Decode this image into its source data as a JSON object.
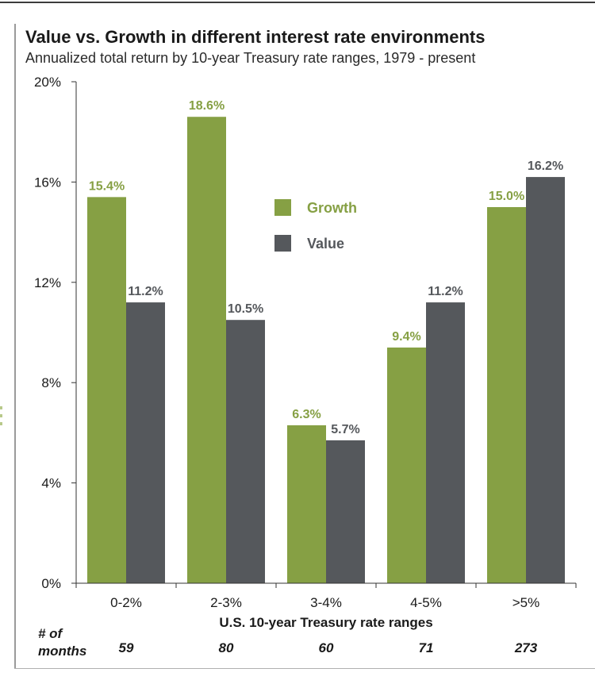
{
  "chart_data": {
    "type": "bar",
    "title": "Value vs. Growth in different interest rate environments",
    "subtitle": "Annualized total return by 10-year Treasury rate ranges, 1979 - present",
    "categories": [
      "0-2%",
      "2-3%",
      "3-4%",
      "4-5%",
      ">5%"
    ],
    "series": [
      {
        "name": "Growth",
        "values": [
          15.4,
          18.6,
          6.3,
          9.4,
          15.0
        ],
        "labels": [
          "15.4%",
          "18.6%",
          "6.3%",
          "9.4%",
          "15.0%"
        ],
        "color": "#86a044",
        "label_color": "#86a044"
      },
      {
        "name": "Value",
        "values": [
          11.2,
          10.5,
          5.7,
          11.2,
          16.2
        ],
        "labels": [
          "11.2%",
          "10.5%",
          "5.7%",
          "11.2%",
          "16.2%"
        ],
        "color": "#55585c",
        "label_color": "#55585c"
      }
    ],
    "ylim": [
      0,
      20
    ],
    "yticks": [
      0,
      4,
      8,
      12,
      16,
      20
    ],
    "ytick_labels": [
      "0%",
      "4%",
      "8%",
      "12%",
      "16%",
      "20%"
    ],
    "xlabel": "U.S. 10-year Treasury rate ranges",
    "ylabel": "",
    "grid": false,
    "legend_position": "center"
  },
  "months": {
    "label_line1": "# of",
    "label_line2": "months",
    "values": [
      "59",
      "80",
      "60",
      "71",
      "273"
    ]
  }
}
